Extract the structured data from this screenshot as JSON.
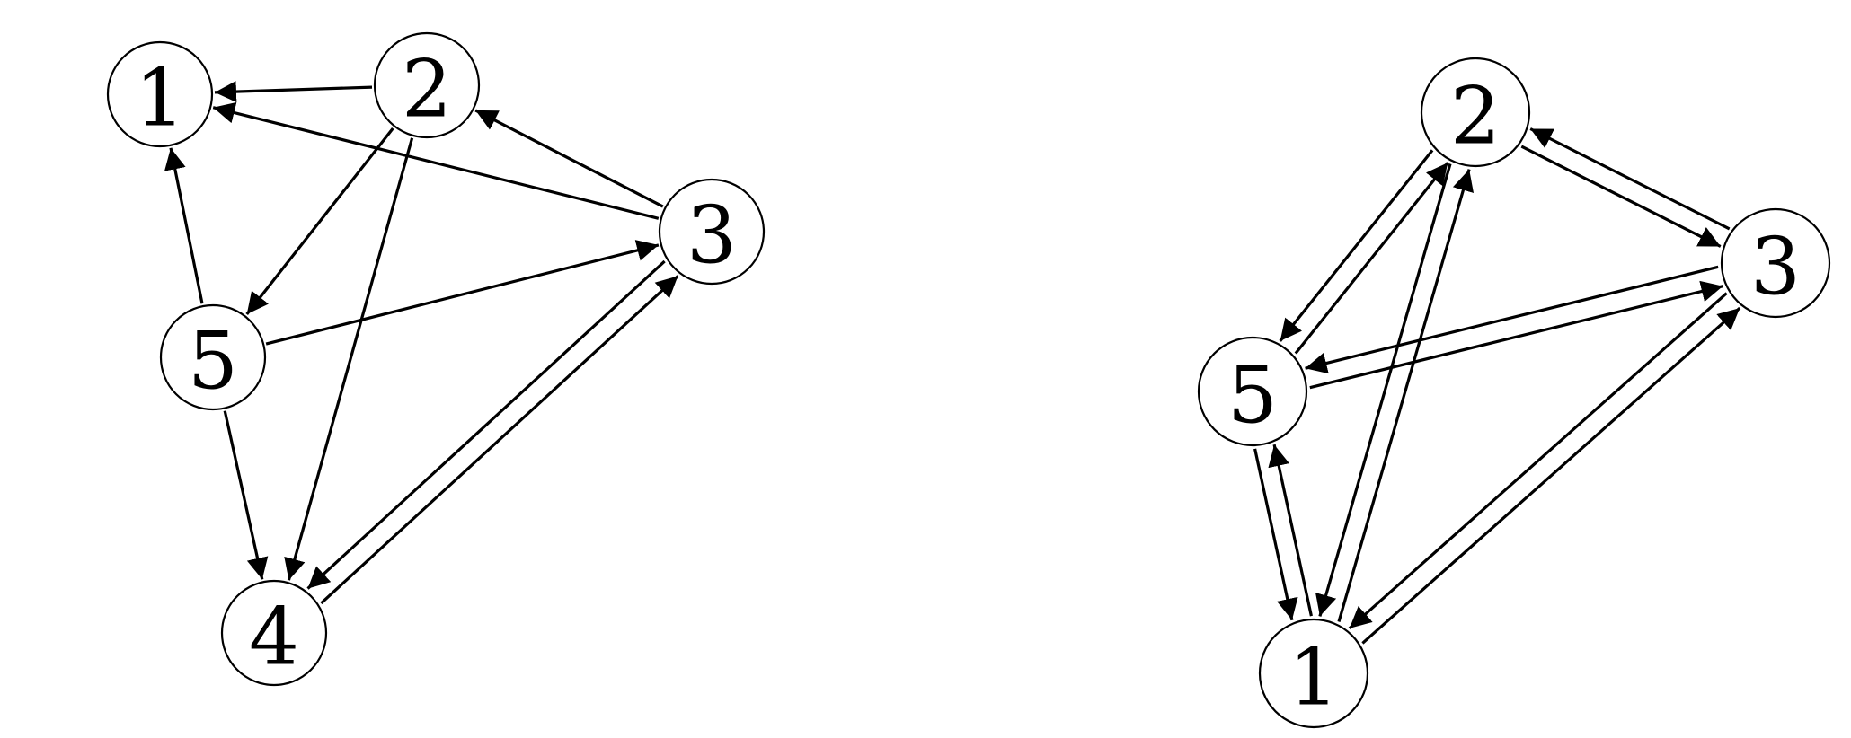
{
  "graphs": [
    {
      "id": "left",
      "nodes": [
        {
          "id": "1",
          "label": "1"
        },
        {
          "id": "2",
          "label": "2"
        },
        {
          "id": "3",
          "label": "3"
        },
        {
          "id": "4",
          "label": "4"
        },
        {
          "id": "5",
          "label": "5"
        }
      ],
      "edges": [
        {
          "from": "2",
          "to": "1"
        },
        {
          "from": "3",
          "to": "1"
        },
        {
          "from": "5",
          "to": "1"
        },
        {
          "from": "3",
          "to": "2"
        },
        {
          "from": "2",
          "to": "5"
        },
        {
          "from": "2",
          "to": "4"
        },
        {
          "from": "5",
          "to": "3"
        },
        {
          "from": "5",
          "to": "4"
        },
        {
          "from": "4",
          "to": "3"
        },
        {
          "from": "3",
          "to": "4"
        }
      ]
    },
    {
      "id": "right",
      "nodes": [
        {
          "id": "1",
          "label": "1"
        },
        {
          "id": "2",
          "label": "2"
        },
        {
          "id": "3",
          "label": "3"
        },
        {
          "id": "5",
          "label": "5"
        }
      ],
      "edges": [
        {
          "from": "2",
          "to": "3"
        },
        {
          "from": "3",
          "to": "2"
        },
        {
          "from": "5",
          "to": "2"
        },
        {
          "from": "2",
          "to": "5"
        },
        {
          "from": "2",
          "to": "1"
        },
        {
          "from": "1",
          "to": "2"
        },
        {
          "from": "5",
          "to": "3"
        },
        {
          "from": "3",
          "to": "5"
        },
        {
          "from": "5",
          "to": "1"
        },
        {
          "from": "1",
          "to": "5"
        },
        {
          "from": "1",
          "to": "3"
        },
        {
          "from": "3",
          "to": "1"
        }
      ]
    }
  ],
  "colors": {
    "stroke": "#000000",
    "background": "#ffffff"
  }
}
